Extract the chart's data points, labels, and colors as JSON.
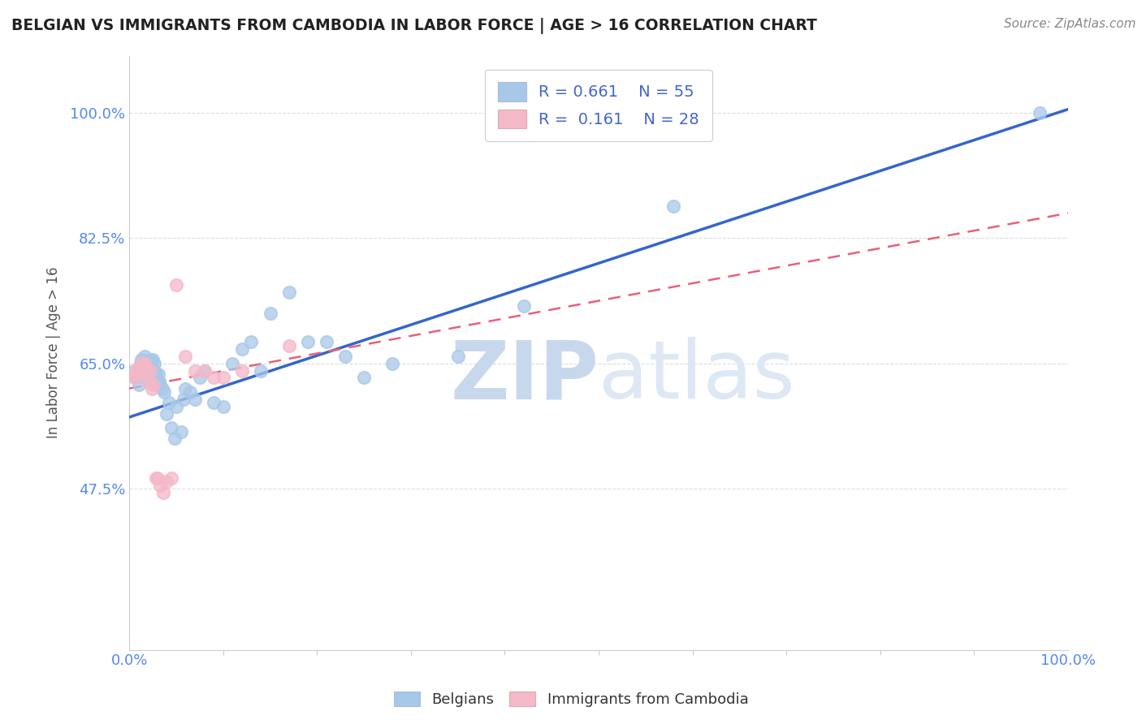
{
  "title": "BELGIAN VS IMMIGRANTS FROM CAMBODIA IN LABOR FORCE | AGE > 16 CORRELATION CHART",
  "source": "Source: ZipAtlas.com",
  "ylabel": "In Labor Force | Age > 16",
  "xlim": [
    0.0,
    1.0
  ],
  "ylim": [
    0.25,
    1.08
  ],
  "yticks": [
    0.475,
    0.65,
    0.825,
    1.0
  ],
  "ytick_labels": [
    "47.5%",
    "65.0%",
    "82.5%",
    "100.0%"
  ],
  "xtick_labels": [
    "0.0%",
    "100.0%"
  ],
  "legend_R1": "0.661",
  "legend_N1": "55",
  "legend_R2": "0.161",
  "legend_N2": "28",
  "blue_scatter_color": "#a8c8e8",
  "pink_scatter_color": "#f4b8c8",
  "blue_line_color": "#3366cc",
  "pink_line_color": "#e8607a",
  "axis_label_color": "#5588ee",
  "tick_color": "#5588ee",
  "title_color": "#222222",
  "source_color": "#888888",
  "ylabel_color": "#555555",
  "watermark_zip": "ZIP",
  "watermark_atlas": "atlas",
  "watermark_color": "#ddeeff",
  "grid_color": "#dddddd",
  "legend_text_color": "#4466cc",
  "legend_label1_R": "0.661",
  "legend_label1_N": "55",
  "legend_label2_R": "0.161",
  "legend_label2_N": "28",
  "belgians_x": [
    0.005,
    0.007,
    0.01,
    0.012,
    0.013,
    0.015,
    0.016,
    0.017,
    0.018,
    0.019,
    0.02,
    0.021,
    0.022,
    0.023,
    0.024,
    0.025,
    0.026,
    0.027,
    0.028,
    0.029,
    0.03,
    0.031,
    0.032,
    0.033,
    0.035,
    0.037,
    0.04,
    0.042,
    0.045,
    0.048,
    0.05,
    0.055,
    0.058,
    0.06,
    0.065,
    0.07,
    0.075,
    0.08,
    0.09,
    0.1,
    0.11,
    0.12,
    0.13,
    0.14,
    0.15,
    0.17,
    0.19,
    0.21,
    0.23,
    0.25,
    0.28,
    0.35,
    0.42,
    0.58,
    0.97
  ],
  "belgians_y": [
    0.64,
    0.63,
    0.62,
    0.65,
    0.655,
    0.645,
    0.66,
    0.635,
    0.65,
    0.645,
    0.625,
    0.64,
    0.655,
    0.645,
    0.63,
    0.655,
    0.64,
    0.65,
    0.635,
    0.625,
    0.62,
    0.635,
    0.625,
    0.62,
    0.615,
    0.61,
    0.58,
    0.595,
    0.56,
    0.545,
    0.59,
    0.555,
    0.6,
    0.615,
    0.61,
    0.6,
    0.63,
    0.64,
    0.595,
    0.59,
    0.65,
    0.67,
    0.68,
    0.64,
    0.72,
    0.75,
    0.68,
    0.68,
    0.66,
    0.63,
    0.65,
    0.66,
    0.73,
    0.87,
    1.0
  ],
  "cambodia_x": [
    0.005,
    0.007,
    0.008,
    0.01,
    0.012,
    0.013,
    0.015,
    0.016,
    0.017,
    0.018,
    0.02,
    0.022,
    0.024,
    0.026,
    0.028,
    0.03,
    0.033,
    0.036,
    0.04,
    0.045,
    0.05,
    0.06,
    0.07,
    0.08,
    0.09,
    0.1,
    0.12,
    0.17
  ],
  "cambodia_y": [
    0.63,
    0.64,
    0.635,
    0.645,
    0.64,
    0.65,
    0.64,
    0.65,
    0.645,
    0.635,
    0.625,
    0.64,
    0.615,
    0.62,
    0.49,
    0.49,
    0.48,
    0.47,
    0.485,
    0.49,
    0.76,
    0.66,
    0.64,
    0.64,
    0.63,
    0.63,
    0.64,
    0.675
  ],
  "blue_line_x0": 0.0,
  "blue_line_y0": 0.575,
  "blue_line_x1": 1.0,
  "blue_line_y1": 1.005,
  "pink_line_x0": 0.0,
  "pink_line_y0": 0.615,
  "pink_line_x1": 1.0,
  "pink_line_y1": 0.86
}
